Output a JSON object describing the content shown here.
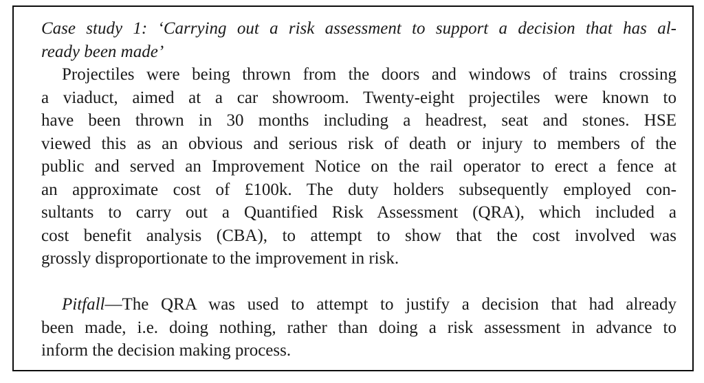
{
  "page": {
    "background_color": "#ffffff",
    "text_color": "#1a1a1a",
    "border_color": "#0b0b0b"
  },
  "case_study_box": {
    "heading_lines": [
      "Case study 1: ‘Carrying out a risk assessment to support a decision that has al-",
      "ready been made’"
    ],
    "body_lines": [
      "Projectiles were being thrown from the doors and windows of trains crossing",
      "a viaduct, aimed at a car showroom. Twenty-eight projectiles were known to",
      "have been thrown in 30 months including a headrest, seat and stones. HSE",
      "viewed this as an obvious and serious risk of death or injury to members of the",
      "public and served an Improvement Notice on the rail operator to erect a fence at",
      "an approximate cost of £100k. The duty holders subsequently employed con-",
      "sultants to carry out a Quantified Risk Assessment (QRA), which included a",
      "cost benefit analysis (CBA), to attempt to show that the cost involved was",
      "grossly disproportionate to the improvement in risk."
    ],
    "pitfall": {
      "lead_italic": "Pitfall",
      "first_line_rest": "—The QRA was used to attempt to justify a decision that had already",
      "continuation_lines": [
        "been made, i.e. doing nothing, rather than doing a risk assessment in advance to",
        "inform the decision making process."
      ]
    }
  }
}
